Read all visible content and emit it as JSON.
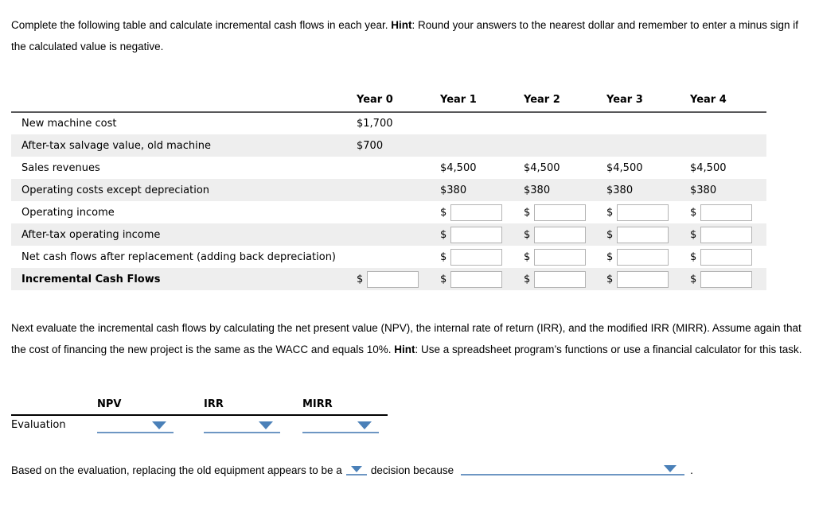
{
  "colors": {
    "dropdown_underline": "#6d96c3",
    "dropdown_arrow": "#4a80b8",
    "row_stripe": "#eeeeee",
    "table_header_border": "#58585a",
    "eval_header_border": "#000000",
    "input_border": "#b3b3b3"
  },
  "paragraph1": {
    "part1": "Complete the following table and calculate incremental cash flows in each year. ",
    "hint_label": "Hint",
    "part2": ": Round your answers to the nearest dollar and remember to enter a minus sign if the calculated value is negative."
  },
  "cash_flow_table": {
    "currency_symbol": "$",
    "columns": [
      "Year 0",
      "Year 1",
      "Year 2",
      "Year 3",
      "Year 4"
    ],
    "rows": [
      {
        "label": "New machine cost",
        "bold": false,
        "cells": [
          {
            "text": "$1,700"
          },
          null,
          null,
          null,
          null
        ]
      },
      {
        "label": "After-tax salvage value, old machine",
        "bold": false,
        "cells": [
          {
            "text": "$700"
          },
          null,
          null,
          null,
          null
        ]
      },
      {
        "label": "Sales revenues",
        "bold": false,
        "cells": [
          null,
          {
            "text": "$4,500"
          },
          {
            "text": "$4,500"
          },
          {
            "text": "$4,500"
          },
          {
            "text": "$4,500"
          }
        ]
      },
      {
        "label": "Operating costs except depreciation",
        "bold": false,
        "cells": [
          null,
          {
            "text": "$380"
          },
          {
            "text": "$380"
          },
          {
            "text": "$380"
          },
          {
            "text": "$380"
          }
        ]
      },
      {
        "label": "Operating income",
        "bold": false,
        "cells": [
          null,
          {
            "input": true
          },
          {
            "input": true
          },
          {
            "input": true
          },
          {
            "input": true
          }
        ]
      },
      {
        "label": "After-tax operating income",
        "bold": false,
        "cells": [
          null,
          {
            "input": true
          },
          {
            "input": true
          },
          {
            "input": true
          },
          {
            "input": true
          }
        ]
      },
      {
        "label": "Net cash flows after replacement (adding back depreciation)",
        "bold": false,
        "cells": [
          null,
          {
            "input": true
          },
          {
            "input": true
          },
          {
            "input": true
          },
          {
            "input": true
          }
        ]
      },
      {
        "label": "Incremental Cash Flows",
        "bold": true,
        "cells": [
          {
            "input": true
          },
          {
            "input": true
          },
          {
            "input": true
          },
          {
            "input": true
          },
          {
            "input": true
          }
        ]
      }
    ]
  },
  "paragraph2": {
    "part1": "Next evaluate the incremental cash flows by calculating the net present value (NPV), the internal rate of return (IRR), and the modified IRR (MIRR). Assume again that the cost of financing the new project is the same as the WACC and equals 10%. ",
    "hint_label": "Hint",
    "part2": ": Use a spreadsheet program’s functions or use a financial calculator for this task."
  },
  "evaluation": {
    "columns": [
      "NPV",
      "IRR",
      "MIRR"
    ],
    "row_label": "Evaluation"
  },
  "conclusion": {
    "text_before": "Based on the evaluation, replacing the old equipment appears to be a",
    "text_middle": "decision because",
    "text_end": "."
  }
}
